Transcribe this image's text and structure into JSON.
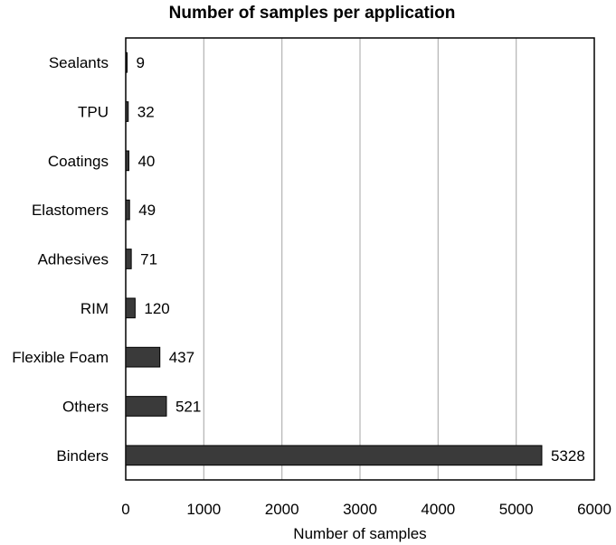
{
  "chart_data": {
    "type": "bar",
    "orientation": "horizontal",
    "title": "Number of samples per application",
    "xlabel": "Number of samples",
    "ylabel": "",
    "categories": [
      "Sealants",
      "TPU",
      "Coatings",
      "Elastomers",
      "Adhesives",
      "RIM",
      "Flexible Foam",
      "Others",
      "Binders"
    ],
    "values": [
      9,
      32,
      40,
      49,
      71,
      120,
      437,
      521,
      5328
    ],
    "xlim": [
      0,
      6000
    ],
    "xticks": [
      0,
      1000,
      2000,
      3000,
      4000,
      5000,
      6000
    ],
    "grid": "vertical",
    "legend": "none",
    "bar_color": "#3a3a3a",
    "bar_edge_color": "#000000",
    "grid_color": "#b3b3b3"
  }
}
